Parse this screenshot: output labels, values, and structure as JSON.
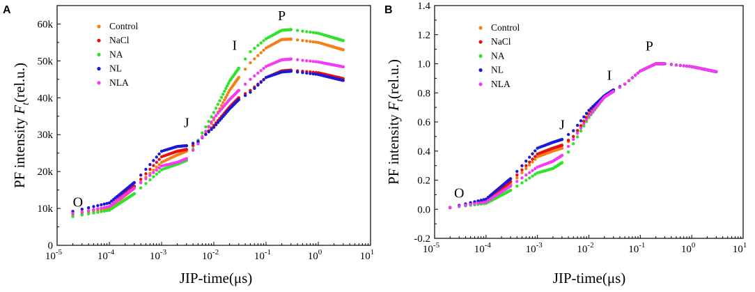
{
  "chart_data": [
    {
      "panel": "A",
      "type": "scatter",
      "xscale": "log",
      "xlim": [
        1e-05,
        10
      ],
      "ylim": [
        0,
        65000
      ],
      "yticks": [
        0,
        10000,
        20000,
        30000,
        40000,
        50000,
        60000
      ],
      "ytick_labels": [
        "0",
        "10k",
        "20k",
        "30k",
        "40k",
        "50k",
        "60k"
      ],
      "xtick_exps": [
        "-5",
        "-4",
        "-3",
        "-2",
        "-1",
        "0",
        "1"
      ],
      "xlabel": "JIP-time(μs)",
      "ylabel": {
        "prefix": "PF intensity ",
        "var": "F",
        "sub": "t",
        "suffix": "(rel.u.)"
      },
      "legend_position": "top-left",
      "annotations": [
        {
          "text": "O",
          "x": 2.5e-05,
          "y": 10500
        },
        {
          "text": "J",
          "x": 0.003,
          "y": 32000
        },
        {
          "text": "I",
          "x": 0.025,
          "y": 53000
        },
        {
          "text": "P",
          "x": 0.2,
          "y": 61000
        }
      ],
      "series": [
        {
          "name": "Control",
          "color": "#f57f17",
          "points": [
            [
              2e-05,
              8000
            ],
            [
              0.0001,
              10000
            ],
            [
              0.0003,
              15500
            ],
            [
              0.001,
              22500
            ],
            [
              0.002,
              24500
            ],
            [
              0.003,
              25500
            ],
            [
              0.005,
              28000
            ],
            [
              0.01,
              34000
            ],
            [
              0.02,
              42000
            ],
            [
              0.03,
              45500
            ],
            [
              0.05,
              49500
            ],
            [
              0.1,
              53500
            ],
            [
              0.2,
              55800
            ],
            [
              0.3,
              55900
            ],
            [
              1,
              55000
            ],
            [
              3,
              53000
            ]
          ]
        },
        {
          "name": "NaCl",
          "color": "#e8110f",
          "points": [
            [
              2e-05,
              8500
            ],
            [
              0.0001,
              10500
            ],
            [
              0.0003,
              16000
            ],
            [
              0.001,
              24000
            ],
            [
              0.002,
              25500
            ],
            [
              0.003,
              26000
            ],
            [
              0.005,
              28000
            ],
            [
              0.01,
              32500
            ],
            [
              0.02,
              37500
            ],
            [
              0.03,
              40000
            ],
            [
              0.05,
              42000
            ],
            [
              0.1,
              45500
            ],
            [
              0.2,
              47300
            ],
            [
              0.3,
              47500
            ],
            [
              1,
              46800
            ],
            [
              3,
              45200
            ]
          ]
        },
        {
          "name": "NA",
          "color": "#2ee32a",
          "points": [
            [
              2e-05,
              7800
            ],
            [
              0.0001,
              9500
            ],
            [
              0.0003,
              14000
            ],
            [
              0.001,
              20500
            ],
            [
              0.002,
              22000
            ],
            [
              0.003,
              23000
            ],
            [
              0.005,
              28500
            ],
            [
              0.01,
              36000
            ],
            [
              0.02,
              44500
            ],
            [
              0.03,
              48000
            ],
            [
              0.05,
              52500
            ],
            [
              0.1,
              56000
            ],
            [
              0.2,
              58300
            ],
            [
              0.3,
              58500
            ],
            [
              1,
              57500
            ],
            [
              3,
              55500
            ]
          ]
        },
        {
          "name": "NL",
          "color": "#1a1ad6",
          "points": [
            [
              2e-05,
              9200
            ],
            [
              0.0001,
              11500
            ],
            [
              0.0003,
              17000
            ],
            [
              0.001,
              25500
            ],
            [
              0.002,
              26800
            ],
            [
              0.003,
              27000
            ],
            [
              0.005,
              28200
            ],
            [
              0.01,
              32000
            ],
            [
              0.02,
              37000
            ],
            [
              0.03,
              39500
            ],
            [
              0.05,
              41500
            ],
            [
              0.1,
              45500
            ],
            [
              0.2,
              47000
            ],
            [
              0.3,
              47200
            ],
            [
              1,
              46300
            ],
            [
              3,
              44700
            ]
          ]
        },
        {
          "name": "NLA",
          "color": "#f43af4",
          "points": [
            [
              2e-05,
              8600
            ],
            [
              0.0001,
              10500
            ],
            [
              0.0003,
              15500
            ],
            [
              0.001,
              21500
            ],
            [
              0.002,
              22500
            ],
            [
              0.003,
              23500
            ],
            [
              0.005,
              27500
            ],
            [
              0.01,
              34500
            ],
            [
              0.02,
              39500
            ],
            [
              0.03,
              42000
            ],
            [
              0.05,
              45000
            ],
            [
              0.1,
              48500
            ],
            [
              0.2,
              50300
            ],
            [
              0.3,
              50500
            ],
            [
              1,
              49700
            ],
            [
              3,
              48400
            ]
          ]
        }
      ]
    },
    {
      "panel": "B",
      "type": "scatter",
      "xscale": "log",
      "xlim": [
        1e-05,
        10
      ],
      "ylim": [
        -0.2,
        1.4
      ],
      "yticks": [
        -0.2,
        0.0,
        0.2,
        0.4,
        0.6,
        0.8,
        1.0,
        1.2,
        1.4
      ],
      "ytick_labels": [
        "-0.2",
        "0.0",
        "0.2",
        "0.4",
        "0.6",
        "0.8",
        "1.0",
        "1.2",
        "1.4"
      ],
      "xtick_exps": [
        "-5",
        "-4",
        "-3",
        "-2",
        "-1",
        "0",
        "1"
      ],
      "xlabel": "JIP-time(μs)",
      "ylabel": {
        "prefix": "PF intensity ",
        "var": "F",
        "sub": "t",
        "suffix": "(rel.u.)"
      },
      "legend_position": "top-left",
      "annotations": [
        {
          "text": "O",
          "x": 3e-05,
          "y": 0.08
        },
        {
          "text": "J",
          "x": 0.003,
          "y": 0.55
        },
        {
          "text": "I",
          "x": 0.025,
          "y": 0.89
        },
        {
          "text": "P",
          "x": 0.15,
          "y": 1.09
        }
      ],
      "series": [
        {
          "name": "Control",
          "color": "#f57f17",
          "points": [
            [
              1e-05,
              0.0
            ],
            [
              2e-05,
              0.01
            ],
            [
              0.0001,
              0.05
            ],
            [
              0.0003,
              0.17
            ],
            [
              0.001,
              0.36
            ],
            [
              0.002,
              0.4
            ],
            [
              0.003,
              0.42
            ],
            [
              0.005,
              0.5
            ],
            [
              0.01,
              0.66
            ],
            [
              0.02,
              0.78
            ],
            [
              0.03,
              0.82
            ],
            [
              0.05,
              0.86
            ],
            [
              0.1,
              0.95
            ],
            [
              0.2,
              1.0
            ],
            [
              0.3,
              1.0
            ],
            [
              1,
              0.98
            ],
            [
              3,
              0.945
            ]
          ]
        },
        {
          "name": "NaCl",
          "color": "#e8110f",
          "points": [
            [
              1e-05,
              0.0
            ],
            [
              2e-05,
              0.01
            ],
            [
              0.0001,
              0.06
            ],
            [
              0.0003,
              0.19
            ],
            [
              0.001,
              0.38
            ],
            [
              0.002,
              0.42
            ],
            [
              0.003,
              0.44
            ],
            [
              0.005,
              0.5
            ],
            [
              0.01,
              0.65
            ],
            [
              0.02,
              0.77
            ],
            [
              0.03,
              0.81
            ],
            [
              0.05,
              0.86
            ],
            [
              0.1,
              0.95
            ],
            [
              0.2,
              1.0
            ],
            [
              0.3,
              1.0
            ],
            [
              1,
              0.98
            ],
            [
              3,
              0.945
            ]
          ]
        },
        {
          "name": "NA",
          "color": "#2ee32a",
          "points": [
            [
              1e-05,
              0.0
            ],
            [
              2e-05,
              0.01
            ],
            [
              0.0001,
              0.04
            ],
            [
              0.0003,
              0.13
            ],
            [
              0.001,
              0.25
            ],
            [
              0.002,
              0.28
            ],
            [
              0.003,
              0.32
            ],
            [
              0.005,
              0.45
            ],
            [
              0.01,
              0.63
            ],
            [
              0.02,
              0.77
            ],
            [
              0.03,
              0.81
            ],
            [
              0.05,
              0.86
            ],
            [
              0.1,
              0.95
            ],
            [
              0.2,
              1.0
            ],
            [
              0.3,
              1.0
            ],
            [
              1,
              0.98
            ],
            [
              3,
              0.945
            ]
          ]
        },
        {
          "name": "NL",
          "color": "#1a1ad6",
          "points": [
            [
              1e-05,
              0.0
            ],
            [
              2e-05,
              0.012
            ],
            [
              0.0001,
              0.07
            ],
            [
              0.0003,
              0.21
            ],
            [
              0.001,
              0.42
            ],
            [
              0.002,
              0.46
            ],
            [
              0.003,
              0.48
            ],
            [
              0.005,
              0.54
            ],
            [
              0.01,
              0.68
            ],
            [
              0.02,
              0.78
            ],
            [
              0.03,
              0.82
            ],
            [
              0.05,
              0.86
            ],
            [
              0.1,
              0.95
            ],
            [
              0.2,
              1.0
            ],
            [
              0.3,
              1.0
            ],
            [
              1,
              0.98
            ],
            [
              3,
              0.945
            ]
          ]
        },
        {
          "name": "NLA",
          "color": "#f43af4",
          "points": [
            [
              1e-05,
              0.0
            ],
            [
              2e-05,
              0.011
            ],
            [
              0.0001,
              0.05
            ],
            [
              0.0003,
              0.16
            ],
            [
              0.001,
              0.29
            ],
            [
              0.002,
              0.33
            ],
            [
              0.003,
              0.37
            ],
            [
              0.005,
              0.48
            ],
            [
              0.01,
              0.64
            ],
            [
              0.02,
              0.77
            ],
            [
              0.03,
              0.81
            ],
            [
              0.05,
              0.86
            ],
            [
              0.1,
              0.95
            ],
            [
              0.2,
              1.0
            ],
            [
              0.3,
              1.0
            ],
            [
              1,
              0.98
            ],
            [
              3,
              0.945
            ]
          ]
        }
      ]
    }
  ]
}
